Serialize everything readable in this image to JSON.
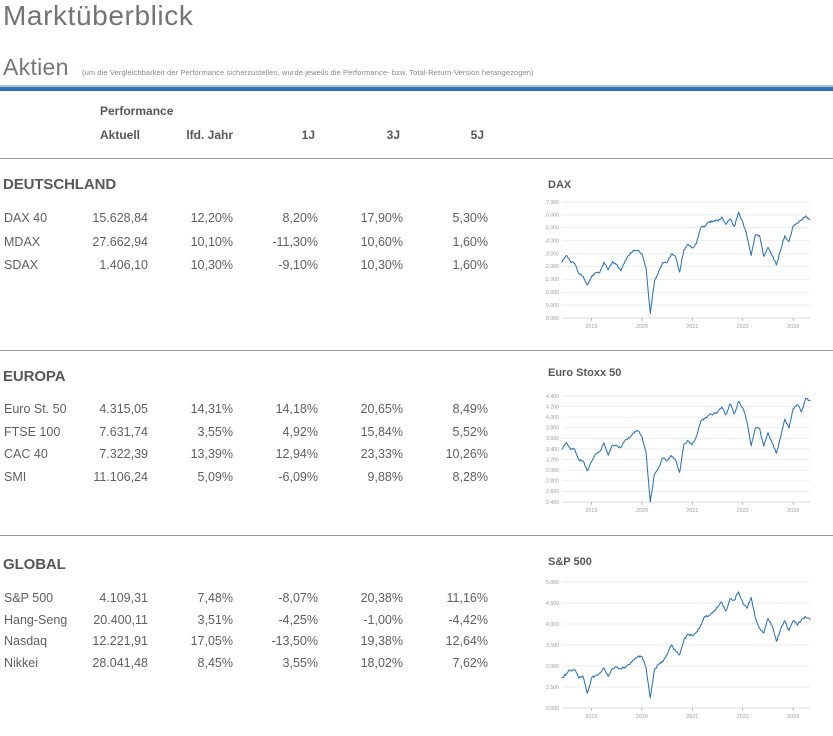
{
  "page": {
    "title": "Marktüberblick",
    "section_title": "Aktien",
    "section_note": "(um die Vergleichbarkeit der Performance sicherzustellen, wurde jeweils die Performance- bzw. Total-Return-Version herangezogen)"
  },
  "colors": {
    "accent_bar": "#2e74b5",
    "accent_bar_light": "#a6c1dd",
    "chart_line": "#2a73b8",
    "grid_line": "#e5e5e5",
    "grid_line_bottom": "#d2d2d2",
    "axis_label": "#9b9da1",
    "tick_mark": "#9a9a9a",
    "heading_text": "#55575b",
    "body_text": "#5d5f63",
    "title_text": "#73767b",
    "divider": "#979797"
  },
  "table": {
    "group_header": "Performance",
    "columns": [
      "Aktuell",
      "lfd. Jahr",
      "1J",
      "3J",
      "5J"
    ],
    "sections": [
      {
        "title": "DEUTSCHLAND",
        "rows": [
          {
            "name": "DAX 40",
            "values": [
              "15.628,84",
              "12,20%",
              "8,20%",
              "17,90%",
              "5,30%"
            ]
          },
          {
            "name": "MDAX",
            "values": [
              "27.662,94",
              "10,10%",
              "-11,30%",
              "10,60%",
              "1,60%"
            ]
          },
          {
            "name": "SDAX",
            "values": [
              "1.406,10",
              "10,30%",
              "-9,10%",
              "10,30%",
              "1,60%"
            ]
          }
        ]
      },
      {
        "title": "EUROPA",
        "rows": [
          {
            "name": "Euro St. 50",
            "values": [
              "4.315,05",
              "14,31%",
              "14,18%",
              "20,65%",
              "8,49%"
            ]
          },
          {
            "name": "FTSE 100",
            "values": [
              "7.631,74",
              "3,55%",
              "4,92%",
              "15,84%",
              "5,52%"
            ]
          },
          {
            "name": "CAC 40",
            "values": [
              "7.322,39",
              "13,39%",
              "12,94%",
              "23,33%",
              "10,26%"
            ]
          },
          {
            "name": "SMI",
            "values": [
              "11.106,24",
              "5,09%",
              "-6,09%",
              "9,88%",
              "8,28%"
            ]
          }
        ]
      },
      {
        "title": "GLOBAL",
        "rows": [
          {
            "name": "S&P 500",
            "values": [
              "4.109,31",
              "7,48%",
              "-8,07%",
              "20,38%",
              "11,16%"
            ]
          },
          {
            "name": "Hang-Seng",
            "values": [
              "20.400,11",
              "3,51%",
              "-4,25%",
              "-1,00%",
              "-4,42%"
            ]
          },
          {
            "name": "Nasdaq",
            "values": [
              "12.221,91",
              "17,05%",
              "-13,50%",
              "19,38%",
              "12,64%"
            ]
          },
          {
            "name": "Nikkei",
            "values": [
              "28.041,48",
              "8,45%",
              "3,55%",
              "18,02%",
              "7,62%"
            ]
          }
        ]
      }
    ]
  },
  "chart_data": [
    {
      "type": "line",
      "title": "DAX",
      "x_start": "2018-06",
      "x_interval": "month",
      "x_labels": [
        "2019",
        "2020",
        "2021",
        "2022",
        "2023"
      ],
      "ylim": [
        8000,
        17000
      ],
      "yticks": [
        17000,
        16000,
        15000,
        14000,
        13000,
        12000,
        11000,
        10000,
        9000,
        8000
      ],
      "ytick_labels": [
        "17.000",
        "16.000",
        "15.000",
        "14.000",
        "13.000",
        "12.000",
        "11.000",
        "10.000",
        "9.000",
        "8.000"
      ],
      "grid": true,
      "legend": false,
      "monthly_values": [
        12350,
        12850,
        12400,
        12250,
        11450,
        11250,
        10560,
        11200,
        11520,
        11530,
        12340,
        11730,
        12400,
        12170,
        11650,
        12430,
        12870,
        13240,
        13250,
        12980,
        11890,
        8350,
        10860,
        11590,
        12310,
        12320,
        12950,
        12760,
        11560,
        13290,
        13720,
        13430,
        13790,
        15010,
        15140,
        15420,
        15530,
        15540,
        15840,
        15260,
        15690,
        15100,
        16210,
        15470,
        14370,
        12850,
        14450,
        14390,
        12780,
        13480,
        12830,
        12110,
        13250,
        14400,
        13920,
        15130,
        15360,
        15630,
        15920,
        15630
      ]
    },
    {
      "type": "line",
      "title": "Euro Stoxx 50",
      "x_start": "2018-06",
      "x_interval": "month",
      "x_labels": [
        "2019",
        "2020",
        "2021",
        "2022",
        "2023"
      ],
      "ylim": [
        2400,
        4400
      ],
      "yticks": [
        4400,
        4200,
        4000,
        3800,
        3600,
        3400,
        3200,
        3000,
        2800,
        2600,
        2400
      ],
      "ytick_labels": [
        "4.400",
        "4.200",
        "4.000",
        "3.800",
        "3.600",
        "3.400",
        "3.200",
        "3.000",
        "2.800",
        "2.600",
        "2.400"
      ],
      "grid": true,
      "legend": false,
      "monthly_values": [
        3395,
        3525,
        3392,
        3399,
        3197,
        3173,
        2986,
        3159,
        3298,
        3352,
        3515,
        3280,
        3474,
        3467,
        3427,
        3569,
        3604,
        3704,
        3745,
        3640,
        3329,
        2400,
        2928,
        3050,
        3234,
        3174,
        3273,
        3193,
        2958,
        3493,
        3553,
        3481,
        3636,
        3919,
        3974,
        4039,
        4064,
        4089,
        4196,
        4048,
        4251,
        4063,
        4298,
        4175,
        3924,
        3460,
        3800,
        3789,
        3455,
        3708,
        3517,
        3318,
        3618,
        3965,
        3794,
        4163,
        4238,
        4100,
        4359,
        4315
      ]
    },
    {
      "type": "line",
      "title": "S&P 500",
      "x_start": "2018-06",
      "x_interval": "month",
      "x_labels": [
        "2019",
        "2020",
        "2021",
        "2022",
        "2023"
      ],
      "ylim": [
        2000,
        5000
      ],
      "yticks": [
        5000,
        4500,
        4000,
        3500,
        3000,
        2500,
        2000
      ],
      "ytick_labels": [
        "5.000",
        "4.500",
        "4.000",
        "3.500",
        "3.000",
        "2.500",
        "2.000"
      ],
      "grid": true,
      "legend": false,
      "monthly_values": [
        2718,
        2816,
        2902,
        2914,
        2712,
        2760,
        2351,
        2704,
        2784,
        2834,
        2946,
        2752,
        2942,
        2980,
        2926,
        2977,
        3038,
        3141,
        3231,
        3226,
        2954,
        2237,
        2912,
        3044,
        3100,
        3271,
        3500,
        3363,
        3270,
        3622,
        3756,
        3714,
        3811,
        3973,
        4181,
        4204,
        4298,
        4395,
        4523,
        4308,
        4605,
        4567,
        4766,
        4516,
        4374,
        4630,
        4132,
        3900,
        3785,
        4130,
        3955,
        3586,
        3872,
        4080,
        3840,
        4077,
        3970,
        4109,
        4169,
        4109
      ]
    }
  ]
}
